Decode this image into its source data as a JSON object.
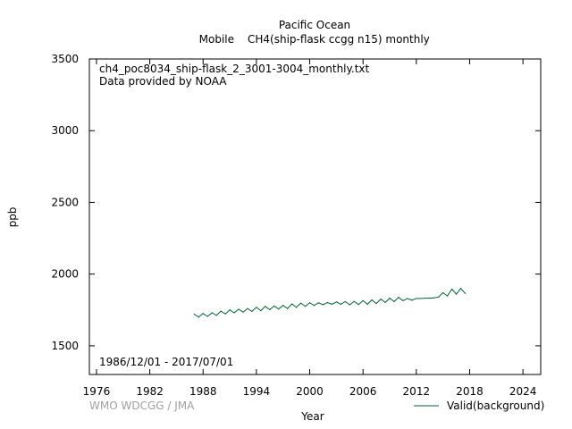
{
  "chart_data": {
    "type": "line",
    "title": "Pacific Ocean",
    "subtitle_left": "Mobile",
    "subtitle_right": "CH4(ship-flask ccgg n15) monthly",
    "annotation_file": "ch4_poc8034_ship-flask_2_3001-3004_monthly.txt",
    "annotation_provider": "Data provided by NOAA",
    "date_range": "1986/12/01 - 2017/07/01",
    "credit": "WMO WDCGG / JMA",
    "xlabel": "Year",
    "ylabel": "ppb",
    "xlim": [
      1975.2,
      2026.0
    ],
    "ylim": [
      1300,
      3500
    ],
    "x_ticks": [
      1976,
      1982,
      1988,
      1994,
      2000,
      2006,
      2012,
      2018,
      2024
    ],
    "y_ticks": [
      1500,
      2000,
      2500,
      3000,
      3500
    ],
    "grid": false,
    "legend_position": "bottom-right",
    "series": [
      {
        "name": "Valid(background)",
        "color": "#006633",
        "x": [
          1987.0,
          1987.5,
          1988.0,
          1988.5,
          1989.0,
          1989.5,
          1990.0,
          1990.5,
          1991.0,
          1991.5,
          1992.0,
          1992.5,
          1993.0,
          1993.5,
          1994.0,
          1994.5,
          1995.0,
          1995.5,
          1996.0,
          1996.5,
          1997.0,
          1997.5,
          1998.0,
          1998.5,
          1999.0,
          1999.5,
          2000.0,
          2000.5,
          2001.0,
          2001.5,
          2002.0,
          2002.5,
          2003.0,
          2003.5,
          2004.0,
          2004.5,
          2005.0,
          2005.5,
          2006.0,
          2006.5,
          2007.0,
          2007.5,
          2008.0,
          2008.5,
          2009.0,
          2009.5,
          2010.0,
          2010.5,
          2011.0,
          2011.5,
          2012.0,
          2012.5,
          2013.0,
          2013.5,
          2014.0,
          2014.5,
          2015.0,
          2015.5,
          2016.0,
          2016.5,
          2017.0,
          2017.5
        ],
        "values": [
          1720,
          1700,
          1725,
          1705,
          1730,
          1712,
          1742,
          1722,
          1750,
          1730,
          1755,
          1735,
          1760,
          1740,
          1768,
          1745,
          1775,
          1752,
          1778,
          1756,
          1782,
          1760,
          1792,
          1768,
          1798,
          1775,
          1800,
          1782,
          1800,
          1787,
          1802,
          1790,
          1806,
          1790,
          1808,
          1786,
          1810,
          1788,
          1815,
          1790,
          1820,
          1795,
          1826,
          1802,
          1832,
          1808,
          1838,
          1815,
          1830,
          1818,
          1830,
          1830,
          1832,
          1832,
          1835,
          1840,
          1870,
          1848,
          1895,
          1860,
          1900,
          1865
        ]
      }
    ]
  }
}
